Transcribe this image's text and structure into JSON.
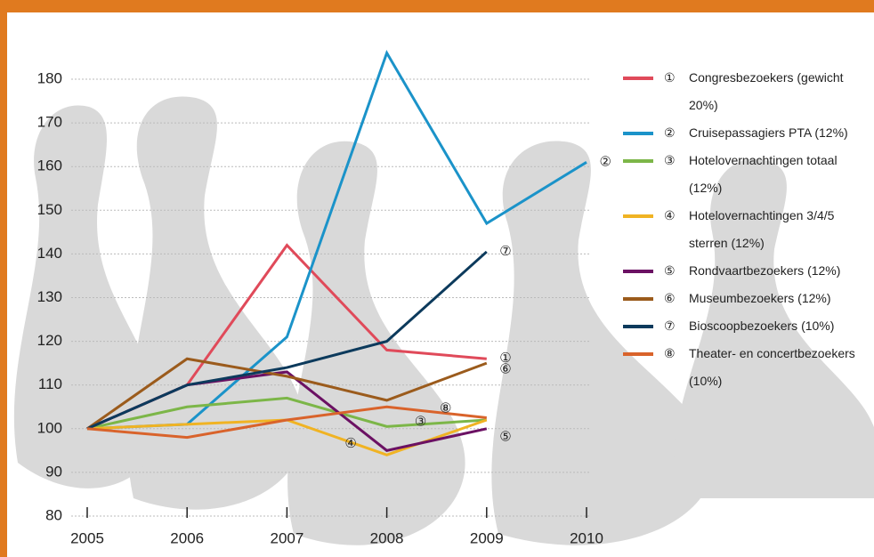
{
  "chart_data": {
    "type": "line",
    "x": [
      2005,
      2006,
      2007,
      2008,
      2009,
      2010
    ],
    "xlim": [
      2005,
      2010
    ],
    "xticks": [
      2005,
      2006,
      2007,
      2008,
      2009,
      2010
    ],
    "ylim": [
      80,
      186
    ],
    "yticks": [
      80,
      90,
      100,
      110,
      120,
      130,
      140,
      150,
      160,
      170,
      180
    ],
    "grid": true,
    "series": [
      {
        "name": "Congresbezoekers (gewicht 20%)",
        "marker": "①",
        "color": "#e04a5a",
        "values": [
          100,
          110,
          142,
          118,
          116,
          null
        ]
      },
      {
        "name": "Cruisepassagiers PTA (12%)",
        "marker": "②",
        "color": "#1b93c9",
        "values": [
          100,
          101,
          121,
          186,
          147,
          161
        ]
      },
      {
        "name": "Hotelovernachtingen totaal (12%)",
        "marker": "③",
        "color": "#7cb648",
        "values": [
          100,
          105,
          107,
          100.5,
          102,
          null
        ]
      },
      {
        "name": "Hotelovernachtingen 3/4/5 sterren (12%)",
        "marker": "④",
        "color": "#f0b323",
        "values": [
          100,
          101,
          102,
          94,
          102,
          null
        ]
      },
      {
        "name": "Rondvaartbezoekers (12%)",
        "marker": "⑤",
        "color": "#6b1163",
        "values": [
          100,
          110,
          113,
          95,
          100,
          null
        ]
      },
      {
        "name": "Museumbezoekers (12%)",
        "marker": "⑥",
        "color": "#9b5b1c",
        "values": [
          100,
          116,
          112,
          106.5,
          115,
          null
        ]
      },
      {
        "name": "Bioscoopbezoekers (10%)",
        "marker": "⑦",
        "color": "#0c3a5c",
        "values": [
          100,
          110,
          114,
          120,
          140.5,
          null
        ]
      },
      {
        "name": "Theater- en concertbezoekers (10%)",
        "marker": "⑧",
        "color": "#d9632b",
        "values": [
          100,
          98,
          102,
          105,
          102.5,
          null
        ]
      }
    ]
  }
}
